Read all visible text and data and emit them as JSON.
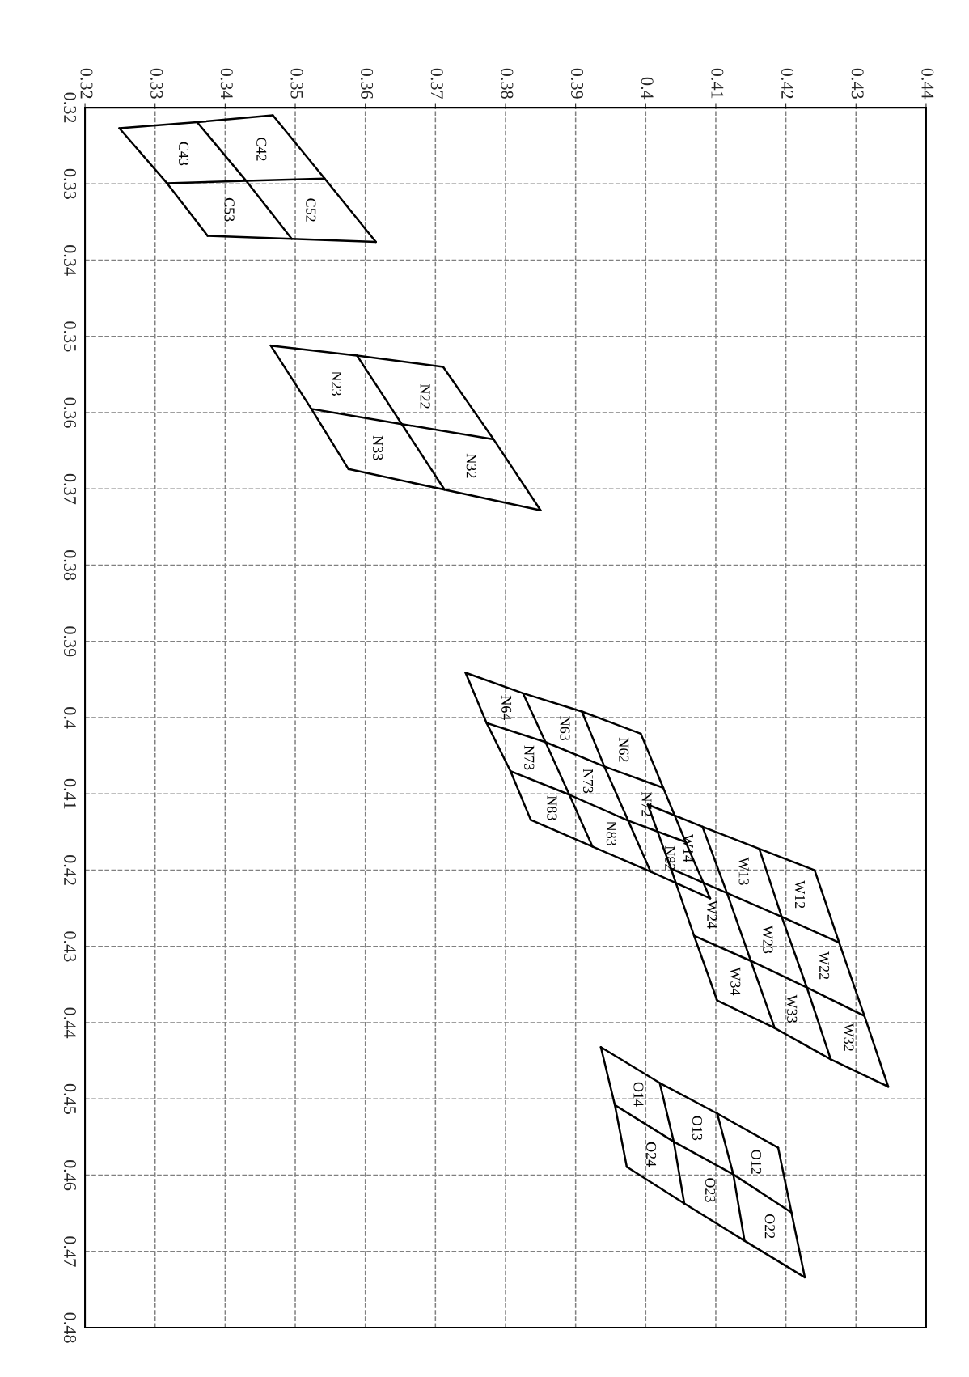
{
  "chart_data": {
    "type": "line",
    "xlim": [
      0.32,
      0.44
    ],
    "ylim": [
      0.48,
      0.32
    ],
    "xticks": [
      0.32,
      0.33,
      0.34,
      0.35,
      0.36,
      0.37,
      0.38,
      0.39,
      0.4,
      0.41,
      0.42,
      0.43,
      0.44
    ],
    "yticks": [
      0.32,
      0.33,
      0.34,
      0.35,
      0.36,
      0.37,
      0.38,
      0.39,
      0.4,
      0.41,
      0.42,
      0.43,
      0.44,
      0.45,
      0.46,
      0.47,
      0.48
    ],
    "grid": true,
    "series": [
      {
        "color": "#000000",
        "x": [
          0.3249,
          0.336,
          0.3468
        ],
        "values": [
          0.3227,
          0.3219,
          0.321
        ]
      },
      {
        "color": "#000000",
        "x": [
          0.3317,
          0.343,
          0.3542
        ],
        "values": [
          0.3299,
          0.3296,
          0.3293
        ]
      },
      {
        "color": "#000000",
        "x": [
          0.3375,
          0.3495,
          0.3615
        ],
        "values": [
          0.3368,
          0.3372,
          0.3376
        ]
      },
      {
        "color": "#000000",
        "x": [
          0.3249,
          0.3317,
          0.3375
        ],
        "values": [
          0.3227,
          0.3299,
          0.3368
        ]
      },
      {
        "color": "#000000",
        "x": [
          0.336,
          0.343,
          0.3495
        ],
        "values": [
          0.3219,
          0.3296,
          0.3372
        ]
      },
      {
        "color": "#000000",
        "x": [
          0.3468,
          0.3542,
          0.3615
        ],
        "values": [
          0.321,
          0.3293,
          0.3376
        ]
      },
      {
        "color": "#000000",
        "x": [
          0.3465,
          0.3588,
          0.3711
        ],
        "values": [
          0.3512,
          0.3525,
          0.354
        ]
      },
      {
        "color": "#000000",
        "x": [
          0.3523,
          0.3652,
          0.3783
        ],
        "values": [
          0.3595,
          0.3615,
          0.3635
        ]
      },
      {
        "color": "#000000",
        "x": [
          0.3576,
          0.3713,
          0.385
        ],
        "values": [
          0.3674,
          0.3701,
          0.3728
        ]
      },
      {
        "color": "#000000",
        "x": [
          0.3465,
          0.3523,
          0.3576
        ],
        "values": [
          0.3512,
          0.3595,
          0.3674
        ]
      },
      {
        "color": "#000000",
        "x": [
          0.3588,
          0.3652,
          0.3713
        ],
        "values": [
          0.3525,
          0.3615,
          0.3701
        ]
      },
      {
        "color": "#000000",
        "x": [
          0.3711,
          0.3783,
          0.385
        ],
        "values": [
          0.354,
          0.3635,
          0.3728
        ]
      },
      {
        "color": "#000000",
        "x": [
          0.3743,
          0.3825,
          0.3909,
          0.3993
        ],
        "values": [
          0.3941,
          0.3968,
          0.3992,
          0.4021
        ]
      },
      {
        "color": "#000000",
        "x": [
          0.3773,
          0.3857,
          0.3941,
          0.4025
        ],
        "values": [
          0.4007,
          0.4032,
          0.4064,
          0.4092
        ]
      },
      {
        "color": "#000000",
        "x": [
          0.3807,
          0.3891,
          0.3975,
          0.4057
        ],
        "values": [
          0.407,
          0.4101,
          0.4135,
          0.4163
        ]
      },
      {
        "color": "#000000",
        "x": [
          0.3836,
          0.3924,
          0.4007,
          0.4092
        ],
        "values": [
          0.4134,
          0.4169,
          0.4202,
          0.4237
        ]
      },
      {
        "color": "#000000",
        "x": [
          0.3743,
          0.3773,
          0.3807,
          0.3836
        ],
        "values": [
          0.3941,
          0.4007,
          0.407,
          0.4134
        ]
      },
      {
        "color": "#000000",
        "x": [
          0.3825,
          0.3857,
          0.3891,
          0.3924
        ],
        "values": [
          0.3968,
          0.4032,
          0.4101,
          0.4169
        ]
      },
      {
        "color": "#000000",
        "x": [
          0.3909,
          0.3941,
          0.3975,
          0.4007
        ],
        "values": [
          0.3992,
          0.4064,
          0.4135,
          0.4202
        ]
      },
      {
        "color": "#000000",
        "x": [
          0.3993,
          0.4025,
          0.4057,
          0.4092
        ],
        "values": [
          0.4021,
          0.4092,
          0.4163,
          0.4237
        ]
      },
      {
        "color": "#000000",
        "x": [
          0.4003,
          0.4081,
          0.4162,
          0.4241
        ],
        "values": [
          0.4114,
          0.4143,
          0.4172,
          0.42
        ]
      },
      {
        "color": "#000000",
        "x": [
          0.4036,
          0.4116,
          0.4194,
          0.4276
        ],
        "values": [
          0.4198,
          0.423,
          0.4261,
          0.4295
        ]
      },
      {
        "color": "#000000",
        "x": [
          0.4069,
          0.415,
          0.423,
          0.4312
        ],
        "values": [
          0.4286,
          0.4319,
          0.4354,
          0.4391
        ]
      },
      {
        "color": "#000000",
        "x": [
          0.4102,
          0.4184,
          0.4264,
          0.4346
        ],
        "values": [
          0.4371,
          0.4407,
          0.4448,
          0.4484
        ]
      },
      {
        "color": "#000000",
        "x": [
          0.4003,
          0.4036,
          0.4069,
          0.4102
        ],
        "values": [
          0.4114,
          0.4198,
          0.4286,
          0.4371
        ]
      },
      {
        "color": "#000000",
        "x": [
          0.4081,
          0.4116,
          0.415,
          0.4184
        ],
        "values": [
          0.4143,
          0.423,
          0.4319,
          0.4407
        ]
      },
      {
        "color": "#000000",
        "x": [
          0.4162,
          0.4194,
          0.423,
          0.4264
        ],
        "values": [
          0.4172,
          0.4261,
          0.4354,
          0.4448
        ]
      },
      {
        "color": "#000000",
        "x": [
          0.4241,
          0.4276,
          0.4312,
          0.4346
        ],
        "values": [
          0.42,
          0.4295,
          0.4391,
          0.4484
        ]
      },
      {
        "color": "#000000",
        "x": [
          0.3936,
          0.402,
          0.4102,
          0.4189
        ],
        "values": [
          0.4432,
          0.4479,
          0.4519,
          0.4564
        ]
      },
      {
        "color": "#000000",
        "x": [
          0.3956,
          0.404,
          0.4125,
          0.4208
        ],
        "values": [
          0.4508,
          0.4556,
          0.4599,
          0.4649
        ]
      },
      {
        "color": "#000000",
        "x": [
          0.3973,
          0.4055,
          0.4141,
          0.4227
        ],
        "values": [
          0.4589,
          0.4637,
          0.4686,
          0.4734
        ]
      },
      {
        "color": "#000000",
        "x": [
          0.3936,
          0.3956,
          0.3973
        ],
        "values": [
          0.4432,
          0.4508,
          0.4589
        ]
      },
      {
        "color": "#000000",
        "x": [
          0.402,
          0.404,
          0.4055
        ],
        "values": [
          0.4479,
          0.4556,
          0.4637
        ]
      },
      {
        "color": "#000000",
        "x": [
          0.4102,
          0.4125,
          0.4141
        ],
        "values": [
          0.4519,
          0.4599,
          0.4686
        ]
      },
      {
        "color": "#000000",
        "x": [
          0.4189,
          0.4208,
          0.4227
        ],
        "values": [
          0.4564,
          0.4649,
          0.4734
        ]
      }
    ],
    "annotations": [
      "C43",
      "C42",
      "C53",
      "C52",
      "N23",
      "N22",
      "N33",
      "N32",
      "N64",
      "N63",
      "N62",
      "N73",
      "N73",
      "N72",
      "N83",
      "N83",
      "N82",
      "W14",
      "W13",
      "W12",
      "W24",
      "W23",
      "W22",
      "W34",
      "W33",
      "W32",
      "O14",
      "O13",
      "O12",
      "O24",
      "O23",
      "O22"
    ]
  }
}
